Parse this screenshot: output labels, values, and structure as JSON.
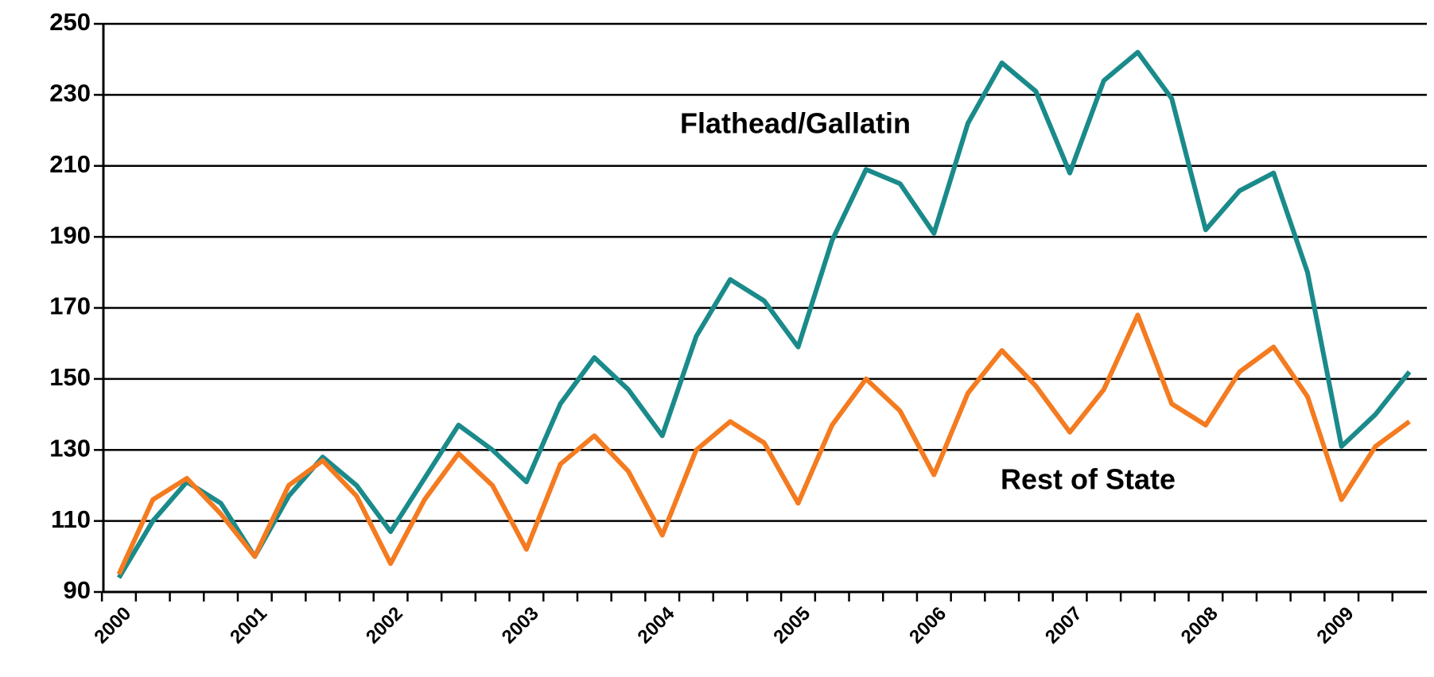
{
  "chart_data": {
    "type": "line",
    "categories": [
      "2000",
      null,
      null,
      null,
      "2001",
      null,
      null,
      null,
      "2002",
      null,
      null,
      null,
      "2003",
      null,
      null,
      null,
      "2004",
      null,
      null,
      null,
      "2005",
      null,
      null,
      null,
      "2006",
      null,
      null,
      null,
      "2007",
      null,
      null,
      null,
      "2008",
      null,
      null,
      null,
      "2009",
      null,
      null
    ],
    "series": [
      {
        "name": "Flathead/Gallatin",
        "color": "#1a8a8a",
        "values": [
          94,
          110,
          121,
          115,
          100,
          117,
          128,
          120,
          107,
          122,
          137,
          130,
          121,
          143,
          156,
          147,
          134,
          162,
          178,
          172,
          159,
          189,
          209,
          205,
          191,
          222,
          239,
          231,
          208,
          234,
          242,
          229,
          192,
          203,
          208,
          180,
          131,
          140,
          152
        ]
      },
      {
        "name": "Rest of State",
        "color": "#f47b20",
        "values": [
          95,
          116,
          122,
          112,
          100,
          120,
          127,
          117,
          98,
          116,
          129,
          120,
          102,
          126,
          134,
          124,
          106,
          130,
          138,
          132,
          115,
          137,
          150,
          141,
          123,
          146,
          158,
          148,
          135,
          147,
          168,
          143,
          137,
          152,
          159,
          145,
          116,
          131,
          138
        ]
      }
    ],
    "ylim": [
      90,
      250
    ],
    "yticks": [
      90,
      110,
      130,
      150,
      170,
      190,
      210,
      230,
      250
    ],
    "grid": true
  }
}
